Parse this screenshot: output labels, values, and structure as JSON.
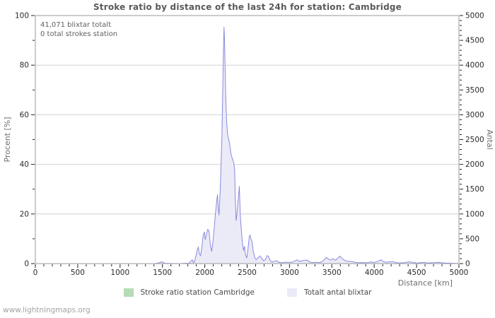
{
  "footer": "www.lightningmaps.org",
  "chart_data": {
    "type": "area",
    "title": "Stroke ratio by distance of the last 24h for station: Cambridge",
    "xlabel": "Distance  [km]",
    "ylabel_left": "Procent  [%]",
    "ylabel_right": "Antal",
    "xlim": [
      0,
      5000
    ],
    "ylim_left": [
      0,
      100
    ],
    "ylim_right": [
      0,
      5000
    ],
    "x_major_tick": 500,
    "x_minor_tick": 100,
    "y_left_major_tick": 20,
    "y_left_minor_tick": 10,
    "y_right_major_tick": 500,
    "y_right_minor_tick": 100,
    "grid": "horizontal-only",
    "colors": {
      "grid": "#d2d2d2",
      "frame": "#9a9a9a",
      "tick": "#222222",
      "tick_label": "#2a2a2a",
      "axis_label": "#6e6e6e"
    },
    "annotations": [
      "41,071 blixtar totalt",
      "0 total strokes station"
    ],
    "legend": [
      {
        "label": "Stroke ratio station Cambridge",
        "color": "#b5dcb5"
      },
      {
        "label": "Totalt antal blixtar",
        "color": "#eaeaf8"
      }
    ],
    "series": [
      {
        "name": "Stroke ratio station Cambridge",
        "axis": "left",
        "line_color": "#b5dcb5",
        "fill_color": "#b5dcb5",
        "points": [
          [
            0,
            0
          ],
          [
            5000,
            0
          ]
        ]
      },
      {
        "name": "Totalt antal blixtar",
        "axis": "right",
        "line_color": "#8a8ade",
        "fill_color": "#ebebf8",
        "points": [
          [
            0,
            0
          ],
          [
            1400,
            0
          ],
          [
            1450,
            10
          ],
          [
            1490,
            35
          ],
          [
            1530,
            5
          ],
          [
            1700,
            0
          ],
          [
            1820,
            10
          ],
          [
            1840,
            60
          ],
          [
            1855,
            75
          ],
          [
            1865,
            20
          ],
          [
            1880,
            50
          ],
          [
            1900,
            180
          ],
          [
            1915,
            300
          ],
          [
            1925,
            330
          ],
          [
            1935,
            200
          ],
          [
            1950,
            160
          ],
          [
            1965,
            320
          ],
          [
            1980,
            560
          ],
          [
            1995,
            640
          ],
          [
            2005,
            480
          ],
          [
            2020,
            600
          ],
          [
            2035,
            690
          ],
          [
            2050,
            660
          ],
          [
            2065,
            390
          ],
          [
            2080,
            240
          ],
          [
            2095,
            420
          ],
          [
            2110,
            700
          ],
          [
            2125,
            1000
          ],
          [
            2140,
            1250
          ],
          [
            2150,
            1395
          ],
          [
            2158,
            1150
          ],
          [
            2168,
            975
          ],
          [
            2180,
            1400
          ],
          [
            2192,
            2000
          ],
          [
            2203,
            2600
          ],
          [
            2212,
            3500
          ],
          [
            2220,
            4300
          ],
          [
            2227,
            4770
          ],
          [
            2233,
            4500
          ],
          [
            2240,
            3900
          ],
          [
            2248,
            3300
          ],
          [
            2257,
            2900
          ],
          [
            2268,
            2620
          ],
          [
            2280,
            2520
          ],
          [
            2295,
            2400
          ],
          [
            2310,
            2200
          ],
          [
            2325,
            2120
          ],
          [
            2340,
            2050
          ],
          [
            2352,
            1900
          ],
          [
            2360,
            1300
          ],
          [
            2370,
            860
          ],
          [
            2382,
            1050
          ],
          [
            2395,
            1300
          ],
          [
            2408,
            1560
          ],
          [
            2418,
            1000
          ],
          [
            2430,
            700
          ],
          [
            2445,
            400
          ],
          [
            2458,
            260
          ],
          [
            2468,
            350
          ],
          [
            2480,
            180
          ],
          [
            2495,
            110
          ],
          [
            2510,
            300
          ],
          [
            2525,
            540
          ],
          [
            2533,
            575
          ],
          [
            2545,
            500
          ],
          [
            2558,
            440
          ],
          [
            2572,
            250
          ],
          [
            2590,
            120
          ],
          [
            2605,
            80
          ],
          [
            2625,
            110
          ],
          [
            2650,
            155
          ],
          [
            2672,
            110
          ],
          [
            2695,
            55
          ],
          [
            2715,
            80
          ],
          [
            2735,
            160
          ],
          [
            2750,
            150
          ],
          [
            2770,
            70
          ],
          [
            2795,
            30
          ],
          [
            2820,
            45
          ],
          [
            2845,
            60
          ],
          [
            2870,
            30
          ],
          [
            2900,
            15
          ],
          [
            2930,
            20
          ],
          [
            2960,
            30
          ],
          [
            2990,
            20
          ],
          [
            3020,
            25
          ],
          [
            3055,
            45
          ],
          [
            3090,
            75
          ],
          [
            3115,
            45
          ],
          [
            3145,
            55
          ],
          [
            3175,
            65
          ],
          [
            3210,
            70
          ],
          [
            3240,
            30
          ],
          [
            3280,
            20
          ],
          [
            3320,
            25
          ],
          [
            3360,
            20
          ],
          [
            3400,
            60
          ],
          [
            3435,
            125
          ],
          [
            3460,
            90
          ],
          [
            3485,
            70
          ],
          [
            3510,
            100
          ],
          [
            3540,
            65
          ],
          [
            3570,
            110
          ],
          [
            3595,
            150
          ],
          [
            3625,
            95
          ],
          [
            3660,
            55
          ],
          [
            3700,
            45
          ],
          [
            3740,
            40
          ],
          [
            3775,
            25
          ],
          [
            3810,
            15
          ],
          [
            3850,
            20
          ],
          [
            3890,
            15
          ],
          [
            3930,
            20
          ],
          [
            3965,
            35
          ],
          [
            4000,
            20
          ],
          [
            4040,
            45
          ],
          [
            4080,
            75
          ],
          [
            4110,
            40
          ],
          [
            4145,
            25
          ],
          [
            4180,
            35
          ],
          [
            4220,
            40
          ],
          [
            4260,
            20
          ],
          [
            4300,
            12
          ],
          [
            4350,
            18
          ],
          [
            4395,
            30
          ],
          [
            4425,
            35
          ],
          [
            4460,
            20
          ],
          [
            4505,
            12
          ],
          [
            4550,
            18
          ],
          [
            4590,
            25
          ],
          [
            4630,
            12
          ],
          [
            4675,
            15
          ],
          [
            4715,
            20
          ],
          [
            4755,
            25
          ],
          [
            4795,
            15
          ],
          [
            4840,
            8
          ],
          [
            4885,
            10
          ],
          [
            4930,
            5
          ],
          [
            4970,
            3
          ],
          [
            5000,
            0
          ]
        ]
      }
    ]
  }
}
